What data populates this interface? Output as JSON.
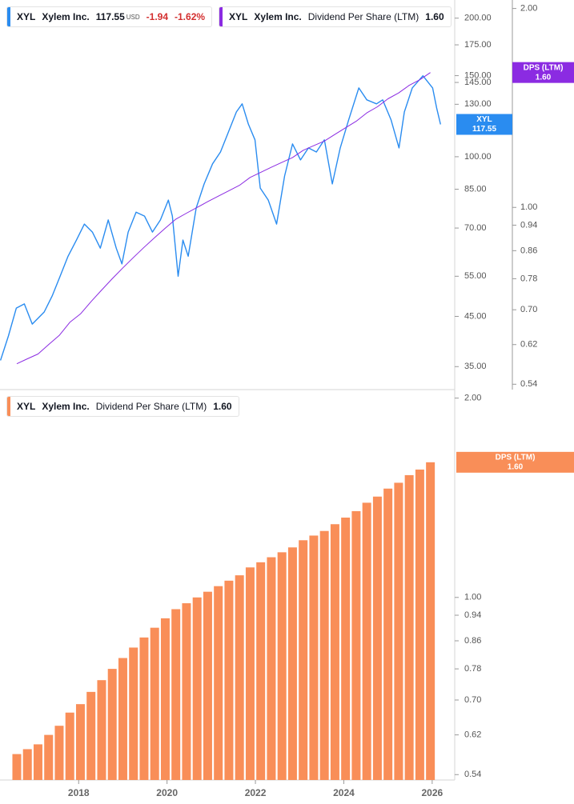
{
  "chart_data": [
    {
      "type": "line",
      "log_scale": true,
      "grid": false,
      "xlim": [
        2016.22,
        2026.51
      ],
      "ylim": [
        31.2,
        219
      ],
      "yticks": [
        {
          "value": 200,
          "label": "200.00"
        },
        {
          "value": 175,
          "label": "175.00"
        },
        {
          "value": 150,
          "label": "150.00"
        },
        {
          "value": 145,
          "label": "145.00"
        },
        {
          "value": 130,
          "label": "130.00"
        },
        {
          "value": 100,
          "label": "100.00"
        },
        {
          "value": 85,
          "label": "85.00"
        },
        {
          "value": 70,
          "label": "70.00"
        },
        {
          "value": 55,
          "label": "55.00"
        },
        {
          "value": 45,
          "label": "45.00"
        },
        {
          "value": 35,
          "label": "35.00"
        }
      ],
      "y2lim": [
        0.53,
        2.06
      ],
      "y2ticks": [
        {
          "value": 2,
          "label": "2.00"
        },
        {
          "value": 1,
          "label": "1.00"
        },
        {
          "value": 0.94,
          "label": "0.94"
        },
        {
          "value": 0.86,
          "label": "0.86"
        },
        {
          "value": 0.78,
          "label": "0.78"
        },
        {
          "value": 0.7,
          "label": "0.70"
        },
        {
          "value": 0.62,
          "label": "0.62"
        },
        {
          "value": 0.54,
          "label": "0.54"
        }
      ],
      "series": [
        {
          "ticker": "XYL",
          "name": "Xylem Inc.",
          "color": "#2a8cf0",
          "tag": "XYL",
          "currency": "USD",
          "change": -1.94,
          "change_pct": "-1.62%",
          "x": [
            2016.23,
            2016.41,
            2016.59,
            2016.77,
            2016.95,
            2017.22,
            2017.4,
            2017.58,
            2017.76,
            2017.95,
            2018.13,
            2018.31,
            2018.49,
            2018.67,
            2018.85,
            2018.98,
            2019.12,
            2019.3,
            2019.49,
            2019.67,
            2019.85,
            2020.03,
            2020.12,
            2020.25,
            2020.36,
            2020.48,
            2020.66,
            2020.84,
            2021.03,
            2021.21,
            2021.39,
            2021.57,
            2021.7,
            2021.84,
            2021.99,
            2022.11,
            2022.29,
            2022.48,
            2022.66,
            2022.84,
            2023.02,
            2023.2,
            2023.38,
            2023.56,
            2023.74,
            2023.92,
            2024.11,
            2024.34,
            2024.52,
            2024.74,
            2024.88,
            2025.07,
            2025.25,
            2025.37,
            2025.55,
            2025.79,
            2026.01,
            2026.1,
            2026.19
          ],
          "values": [
            36.1,
            40.8,
            46.9,
            47.9,
            43.3,
            46,
            49.8,
            55,
            60.8,
            65.9,
            71.4,
            68.6,
            63.3,
            72.9,
            63.3,
            58.5,
            68.6,
            75.8,
            74.3,
            68.6,
            72.9,
            80.5,
            74.3,
            55,
            65.9,
            60.8,
            77.4,
            87.3,
            96.5,
            102.4,
            113.2,
            125.1,
            130.3,
            117.8,
            108.8,
            85.5,
            80.5,
            71.4,
            90.8,
            106.6,
            98.4,
            104.5,
            102.4,
            108.8,
            87.3,
            104.5,
            120.2,
            141.1,
            132.9,
            130.3,
            132.9,
            120.2,
            104.5,
            125.1,
            141.1,
            149.9,
            141.1,
            127.7,
            117.55
          ]
        },
        {
          "ticker": "XYL",
          "name": "Xylem Inc.",
          "metric": "Dividend Per Share (LTM)",
          "color": "#8b2be2",
          "axis": "y2",
          "tag": "DPS (LTM)",
          "last_label": "1.60",
          "x": [
            2016.6,
            2016.84,
            2017.08,
            2017.32,
            2017.56,
            2017.8,
            2018.04,
            2018.28,
            2018.52,
            2018.76,
            2019.0,
            2019.24,
            2019.48,
            2019.72,
            2019.96,
            2020.2,
            2020.44,
            2020.68,
            2020.92,
            2021.16,
            2021.4,
            2021.64,
            2021.88,
            2022.12,
            2022.36,
            2022.6,
            2022.84,
            2023.08,
            2023.32,
            2023.56,
            2023.8,
            2024.04,
            2024.28,
            2024.52,
            2024.76,
            2025.0,
            2025.24,
            2025.48,
            2025.72,
            2025.96
          ],
          "values": [
            0.58,
            0.59,
            0.6,
            0.62,
            0.64,
            0.67,
            0.69,
            0.72,
            0.75,
            0.78,
            0.81,
            0.84,
            0.87,
            0.9,
            0.93,
            0.96,
            0.98,
            1.0,
            1.02,
            1.04,
            1.06,
            1.08,
            1.11,
            1.13,
            1.15,
            1.17,
            1.19,
            1.22,
            1.24,
            1.26,
            1.29,
            1.32,
            1.35,
            1.39,
            1.42,
            1.46,
            1.49,
            1.53,
            1.56,
            1.6
          ]
        }
      ]
    },
    {
      "type": "bar",
      "log_scale": true,
      "grid": false,
      "xlim": [
        2016.22,
        2026.51
      ],
      "xticks": [
        2018,
        2020,
        2022,
        2024,
        2026
      ],
      "ylim": [
        0.53,
        2.06
      ],
      "yticks": [
        {
          "value": 2,
          "label": "2.00"
        },
        {
          "value": 1,
          "label": "1.00"
        },
        {
          "value": 0.94,
          "label": "0.94"
        },
        {
          "value": 0.86,
          "label": "0.86"
        },
        {
          "value": 0.78,
          "label": "0.78"
        },
        {
          "value": 0.7,
          "label": "0.70"
        },
        {
          "value": 0.62,
          "label": "0.62"
        },
        {
          "value": 0.54,
          "label": "0.54"
        }
      ],
      "series": [
        {
          "ticker": "XYL",
          "name": "Xylem Inc.",
          "metric": "Dividend Per Share (LTM)",
          "color": "#f98e58",
          "tag": "DPS (LTM)",
          "last_label": "1.60",
          "x": [
            2016.6,
            2016.84,
            2017.08,
            2017.32,
            2017.56,
            2017.8,
            2018.04,
            2018.28,
            2018.52,
            2018.76,
            2019.0,
            2019.24,
            2019.48,
            2019.72,
            2019.96,
            2020.2,
            2020.44,
            2020.68,
            2020.92,
            2021.16,
            2021.4,
            2021.64,
            2021.88,
            2022.12,
            2022.36,
            2022.6,
            2022.84,
            2023.08,
            2023.32,
            2023.56,
            2023.8,
            2024.04,
            2024.28,
            2024.52,
            2024.76,
            2025.0,
            2025.24,
            2025.48,
            2025.72,
            2025.96
          ],
          "values": [
            0.58,
            0.59,
            0.6,
            0.62,
            0.64,
            0.67,
            0.69,
            0.72,
            0.75,
            0.78,
            0.81,
            0.84,
            0.87,
            0.9,
            0.93,
            0.96,
            0.98,
            1.0,
            1.02,
            1.04,
            1.06,
            1.08,
            1.11,
            1.13,
            1.15,
            1.17,
            1.19,
            1.22,
            1.24,
            1.26,
            1.29,
            1.32,
            1.35,
            1.39,
            1.42,
            1.46,
            1.49,
            1.53,
            1.56,
            1.6
          ]
        }
      ]
    }
  ]
}
